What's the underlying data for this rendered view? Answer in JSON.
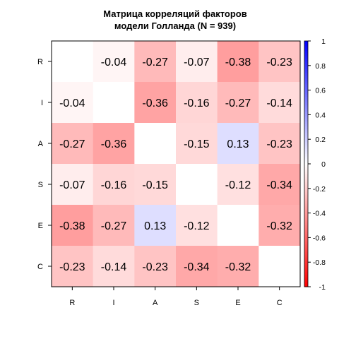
{
  "chart_data": {
    "type": "heatmap",
    "title_line1": "Матрица корреляций факторов",
    "title_line2": "модели Голланда (N = 939)",
    "rows": [
      "R",
      "I",
      "A",
      "S",
      "E",
      "C"
    ],
    "cols": [
      "R",
      "I",
      "A",
      "S",
      "E",
      "C"
    ],
    "values": [
      [
        null,
        -0.04,
        -0.27,
        -0.07,
        -0.38,
        -0.23
      ],
      [
        -0.04,
        null,
        -0.36,
        -0.16,
        -0.27,
        -0.14
      ],
      [
        -0.27,
        -0.36,
        null,
        -0.15,
        0.13,
        -0.23
      ],
      [
        -0.07,
        -0.16,
        -0.15,
        null,
        -0.12,
        -0.34
      ],
      [
        -0.38,
        -0.27,
        0.13,
        -0.12,
        null,
        -0.32
      ],
      [
        -0.23,
        -0.14,
        -0.23,
        -0.34,
        -0.32,
        null
      ]
    ],
    "value_labels": [
      [
        "",
        "-0.04",
        "-0.27",
        "-0.07",
        "-0.38",
        "-0.23"
      ],
      [
        "-0.04",
        "",
        "-0.36",
        "-0.16",
        "-0.27",
        "-0.14"
      ],
      [
        "-0.27",
        "-0.36",
        "",
        "-0.15",
        "0.13",
        "-0.23"
      ],
      [
        "-0.07",
        "-0.16",
        "-0.15",
        "",
        "-0.12",
        "-0.34"
      ],
      [
        "-0.38",
        "-0.27",
        "0.13",
        "-0.12",
        "",
        "-0.32"
      ],
      [
        "-0.23",
        "-0.14",
        "-0.23",
        "-0.34",
        "-0.32",
        ""
      ]
    ],
    "colorbar": {
      "range": [
        -1,
        1
      ],
      "ticks": [
        1,
        0.8,
        0.6,
        0.4,
        0.2,
        0,
        -0.2,
        -0.4,
        -0.6,
        -0.8,
        -1
      ],
      "tick_labels": [
        "1",
        "0.8",
        "0.6",
        "0.4",
        "0.2",
        "0",
        "-0.2",
        "-0.4",
        "-0.6",
        "-0.8",
        "-1"
      ],
      "negative_color": "#ff0000",
      "positive_color": "#0000ff",
      "neutral_color": "#ffffff"
    },
    "diagonal_color": "#ffffff",
    "border_color": "#000000"
  }
}
